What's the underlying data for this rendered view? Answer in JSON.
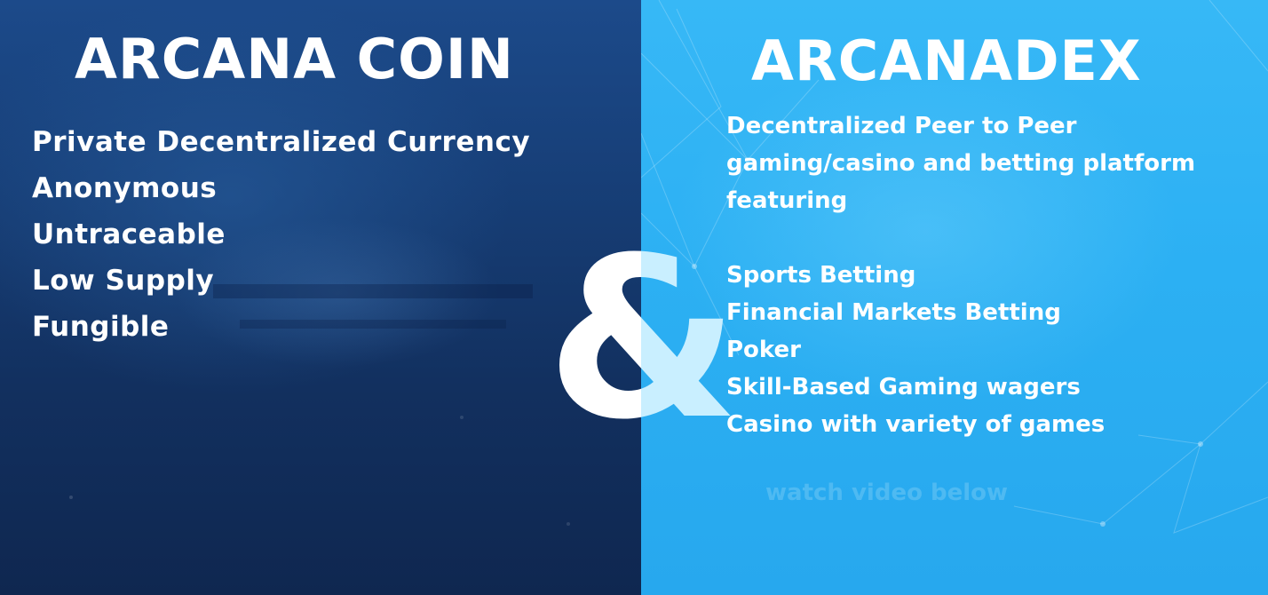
{
  "left": {
    "title": "ARCANA COIN",
    "features": [
      "Private Decentralized Currency",
      "Anonymous",
      "Untraceable",
      "Low Supply",
      "Fungible"
    ]
  },
  "right": {
    "title": "ARCANADEX",
    "description": "Decentralized Peer to Peer gaming/casino and betting platform featuring",
    "features": [
      "Sports Betting",
      "Financial Markets Betting",
      "Poker",
      "Skill-Based Gaming wagers",
      "Casino with variety of games"
    ],
    "faint_text": "watch video below"
  },
  "ampersand": "&",
  "colors": {
    "left_bg": "#173f78",
    "right_bg": "#2cb0f3",
    "text": "#ffffff",
    "amp_left": "#ffffff",
    "amp_right": "#c9efff"
  }
}
